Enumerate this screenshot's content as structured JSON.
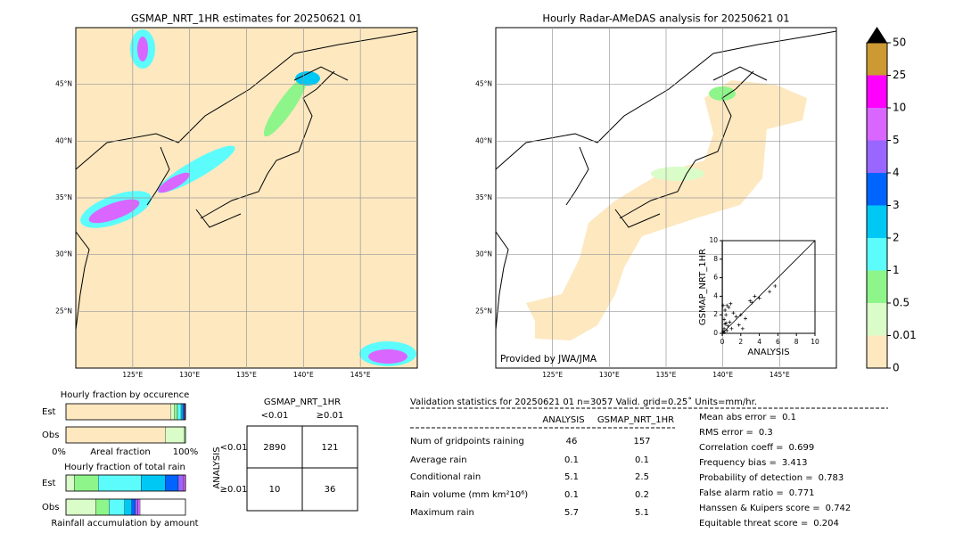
{
  "maps": [
    {
      "title": "GSMAP_NRT_1HR estimates for 20250621 01",
      "xlim": [
        120,
        150
      ],
      "ylim": [
        20,
        50
      ],
      "xticks": [
        {
          "value": 125,
          "label": "125°E"
        },
        {
          "value": 130,
          "label": "130°E"
        },
        {
          "value": 135,
          "label": "135°E"
        },
        {
          "value": 140,
          "label": "140°E"
        },
        {
          "value": 145,
          "label": "145°E"
        }
      ],
      "yticks": [
        {
          "value": 25,
          "label": "25°N"
        },
        {
          "value": 30,
          "label": "30°N"
        },
        {
          "value": 35,
          "label": "35°N"
        },
        {
          "value": 40,
          "label": "40°N"
        },
        {
          "value": 45,
          "label": "45°N"
        }
      ]
    },
    {
      "title": "Hourly Radar-AMeDAS analysis for 20250621 01",
      "credit": "Provided by JWA/JMA",
      "xlim": [
        120,
        150
      ],
      "ylim": [
        20,
        50
      ],
      "xticks": [
        {
          "value": 125,
          "label": "125°E"
        },
        {
          "value": 130,
          "label": "130°E"
        },
        {
          "value": 135,
          "label": "135°E"
        },
        {
          "value": 140,
          "label": "140°E"
        },
        {
          "value": 145,
          "label": "145°E"
        }
      ],
      "yticks": [
        {
          "value": 25,
          "label": "25°N"
        },
        {
          "value": 30,
          "label": "30°N"
        },
        {
          "value": 35,
          "label": "35°N"
        },
        {
          "value": 40,
          "label": "40°N"
        },
        {
          "value": 45,
          "label": "45°N"
        }
      ]
    }
  ],
  "colorbar": {
    "levels": [
      0,
      0.01,
      0.5,
      1,
      2,
      3,
      4,
      5,
      10,
      25,
      50
    ],
    "colors": [
      "#fde8c0",
      "#dafcc8",
      "#8ef58a",
      "#5cfcfc",
      "#00c8f5",
      "#0064ff",
      "#9966ff",
      "#d966ff",
      "#ff00ff",
      "#cc9933"
    ],
    "over_color": "#000000"
  },
  "scatter": {
    "xlabel": "ANALYSIS",
    "ylabel": "GSMAP_NRT_1HR",
    "xlim": [
      0,
      10
    ],
    "ylim": [
      0,
      10
    ],
    "xticks": [
      0,
      2,
      4,
      6,
      8,
      10
    ],
    "yticks": [
      0,
      2,
      4,
      6,
      8,
      10
    ],
    "x": [
      0.1,
      0.2,
      0.3,
      0.5,
      0.2,
      0.4,
      0.6,
      0.8,
      1.0,
      0.3,
      0.5,
      1.2,
      1.5,
      0.7,
      2.0,
      2.5,
      3.0,
      3.5,
      4.0,
      5.1,
      5.7,
      1.8,
      0.9,
      0.4,
      2.2,
      3.2,
      0.1,
      0.2
    ],
    "y": [
      0.2,
      0.5,
      1.0,
      0.3,
      1.5,
      2.0,
      0.8,
      1.2,
      0.5,
      2.5,
      3.0,
      2.2,
      1.8,
      2.8,
      2.0,
      1.6,
      3.5,
      4.0,
      3.8,
      4.5,
      5.1,
      0.9,
      3.2,
      1.1,
      0.5,
      3.3,
      3.0,
      0.1
    ]
  },
  "occurrence": {
    "title": "Hourly fraction by occurence",
    "rows": [
      "Est",
      "Obs"
    ],
    "axis": [
      "0%",
      "Areal fraction",
      "100%"
    ],
    "values": [
      [
        0.878,
        0.03,
        0.025,
        0.03,
        0.015,
        0.01,
        0.007,
        0.005
      ],
      [
        0.83,
        0.16,
        0.01
      ]
    ]
  },
  "total_rain": {
    "title": "Hourly fraction of total rain",
    "rows": [
      "Est",
      "Obs"
    ],
    "footer": "Rainfall accumulation by amount",
    "values": [
      [
        0,
        0.07,
        0.2,
        0.36,
        0.2,
        0.11,
        0.04,
        0.02
      ],
      [
        0,
        0.25,
        0.11,
        0.13,
        0.06,
        0.03,
        0.02,
        0.02
      ]
    ]
  },
  "contingency": {
    "title": "GSMAP_NRT_1HR",
    "cols": [
      "<0.01",
      "≥0.01"
    ],
    "side": "ANALYSIS",
    "rows": [
      "<0.01",
      "≥0.01"
    ],
    "cells": [
      [
        2890,
        121
      ],
      [
        10,
        36
      ]
    ]
  },
  "stats": {
    "header": "Validation statistics for 20250621 01  n=3057 Valid. grid=0.25˚ Units=mm/hr.",
    "cols": [
      "ANALYSIS",
      "GSMAP_NRT_1HR"
    ],
    "rows": [
      [
        "Num of gridpoints raining",
        46,
        157
      ],
      [
        "Average rain",
        0.1,
        0.1
      ],
      [
        "Conditional rain",
        5.1,
        2.5
      ],
      [
        "Rain volume (mm km²10⁶)",
        0.1,
        0.2
      ],
      [
        "Maximum rain",
        5.7,
        5.1
      ]
    ],
    "scores": [
      [
        "Mean abs error =",
        0.1
      ],
      [
        "RMS error =",
        0.3
      ],
      [
        "Correlation coeff =",
        0.699
      ],
      [
        "Frequency bias =",
        3.413
      ],
      [
        "Probability of detection =",
        0.783
      ],
      [
        "False alarm ratio =",
        0.771
      ],
      [
        "Hanssen & Kuipers score =",
        0.742
      ],
      [
        "Equitable threat score =",
        0.204
      ]
    ]
  }
}
